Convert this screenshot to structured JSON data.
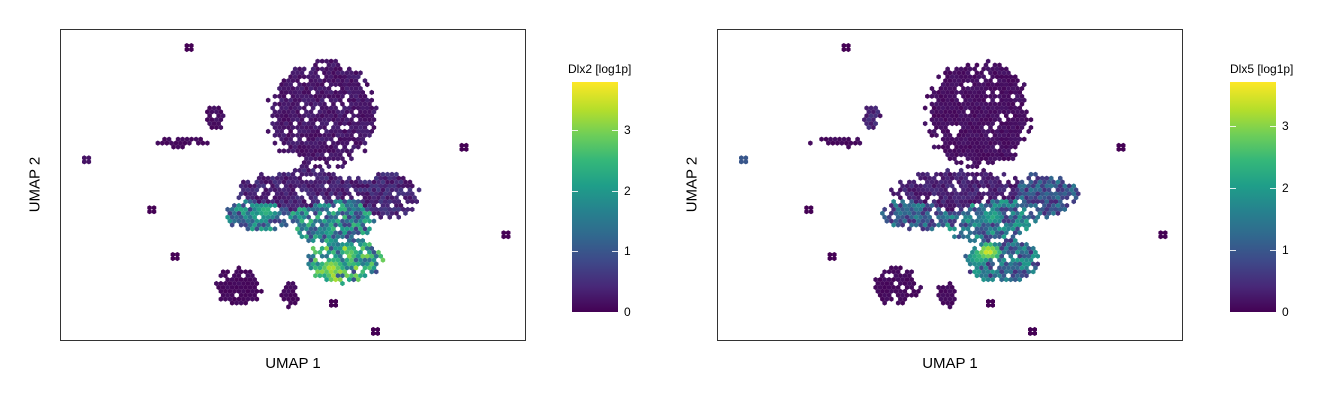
{
  "chart_data": [
    {
      "type": "scatter",
      "subtype": "hexbin-umap-expression",
      "title": "",
      "xlabel": "UMAP 1",
      "ylabel": "UMAP 2",
      "legend_title": "Dlx2 [log1p]",
      "legend_placement": "right",
      "colormap": "viridis",
      "color_range": [
        0,
        3.8
      ],
      "colorbar_ticks": [
        0,
        1,
        2,
        3
      ],
      "grid": false,
      "axis_ticks": false,
      "regions": [
        {
          "name": "top-lobe",
          "cx": 0.56,
          "cy": 0.73,
          "rx": 0.11,
          "ry": 0.17,
          "value": 0.25
        },
        {
          "name": "central-upper",
          "cx": 0.52,
          "cy": 0.48,
          "rx": 0.14,
          "ry": 0.07,
          "value": 0.4
        },
        {
          "name": "left-arm",
          "cx": 0.43,
          "cy": 0.41,
          "rx": 0.08,
          "ry": 0.05,
          "value": 1.6
        },
        {
          "name": "center-body",
          "cx": 0.58,
          "cy": 0.4,
          "rx": 0.1,
          "ry": 0.08,
          "value": 1.8
        },
        {
          "name": "right-wing",
          "cx": 0.7,
          "cy": 0.47,
          "rx": 0.07,
          "ry": 0.07,
          "value": 0.45
        },
        {
          "name": "lower-tail",
          "cx": 0.61,
          "cy": 0.26,
          "rx": 0.08,
          "ry": 0.07,
          "value": 2.3
        },
        {
          "name": "bottom-left-cluster",
          "cx": 0.38,
          "cy": 0.18,
          "rx": 0.05,
          "ry": 0.06,
          "value": 0.1
        },
        {
          "name": "bottom-mid-cluster",
          "cx": 0.49,
          "cy": 0.15,
          "rx": 0.02,
          "ry": 0.04,
          "value": 0.1
        },
        {
          "name": "mid-left-cluster",
          "cx": 0.26,
          "cy": 0.64,
          "rx": 0.06,
          "ry": 0.015,
          "value": 0.1
        },
        {
          "name": "upper-left-cluster",
          "cx": 0.33,
          "cy": 0.72,
          "rx": 0.02,
          "ry": 0.04,
          "value": 0.15
        }
      ],
      "outliers": [
        {
          "x": 0.27,
          "y": 0.95,
          "value": 0.0
        },
        {
          "x": 0.05,
          "y": 0.59,
          "value": 0.2
        },
        {
          "x": 0.19,
          "y": 0.43,
          "value": 0.0
        },
        {
          "x": 0.86,
          "y": 0.63,
          "value": 0.0
        },
        {
          "x": 0.95,
          "y": 0.35,
          "value": 0.0
        },
        {
          "x": 0.67,
          "y": 0.04,
          "value": 0.0
        },
        {
          "x": 0.24,
          "y": 0.28,
          "value": 0.0
        },
        {
          "x": 0.58,
          "y": 0.13,
          "value": 0.0
        }
      ],
      "hotspots": [
        {
          "x": 0.58,
          "y": 0.24,
          "value": 3.6
        },
        {
          "x": 0.62,
          "y": 0.29,
          "value": 3.0
        },
        {
          "x": 0.44,
          "y": 0.42,
          "value": 2.7
        }
      ]
    },
    {
      "type": "scatter",
      "subtype": "hexbin-umap-expression",
      "title": "",
      "xlabel": "UMAP 1",
      "ylabel": "UMAP 2",
      "legend_title": "Dlx5 [log1p]",
      "legend_placement": "right",
      "colormap": "viridis",
      "color_range": [
        0,
        3.7
      ],
      "colorbar_ticks": [
        0,
        1,
        2,
        3
      ],
      "grid": false,
      "axis_ticks": false,
      "regions": [
        {
          "name": "top-lobe",
          "cx": 0.56,
          "cy": 0.73,
          "rx": 0.11,
          "ry": 0.17,
          "value": 0.15
        },
        {
          "name": "central-upper",
          "cx": 0.52,
          "cy": 0.48,
          "rx": 0.14,
          "ry": 0.07,
          "value": 0.35
        },
        {
          "name": "left-arm",
          "cx": 0.43,
          "cy": 0.41,
          "rx": 0.08,
          "ry": 0.05,
          "value": 1.2
        },
        {
          "name": "center-body",
          "cx": 0.58,
          "cy": 0.4,
          "rx": 0.1,
          "ry": 0.08,
          "value": 1.5
        },
        {
          "name": "right-wing",
          "cx": 0.7,
          "cy": 0.47,
          "rx": 0.07,
          "ry": 0.07,
          "value": 1.1
        },
        {
          "name": "lower-tail",
          "cx": 0.61,
          "cy": 0.26,
          "rx": 0.08,
          "ry": 0.07,
          "value": 1.4
        },
        {
          "name": "bottom-left-cluster",
          "cx": 0.38,
          "cy": 0.18,
          "rx": 0.05,
          "ry": 0.06,
          "value": 0.1
        },
        {
          "name": "bottom-mid-cluster",
          "cx": 0.49,
          "cy": 0.15,
          "rx": 0.02,
          "ry": 0.04,
          "value": 0.1
        },
        {
          "name": "mid-left-cluster",
          "cx": 0.26,
          "cy": 0.64,
          "rx": 0.06,
          "ry": 0.015,
          "value": 0.1
        },
        {
          "name": "upper-left-cluster",
          "cx": 0.33,
          "cy": 0.72,
          "rx": 0.02,
          "ry": 0.04,
          "value": 0.4
        }
      ],
      "outliers": [
        {
          "x": 0.27,
          "y": 0.95,
          "value": 0.0
        },
        {
          "x": 0.05,
          "y": 0.59,
          "value": 1.0
        },
        {
          "x": 0.19,
          "y": 0.43,
          "value": 0.0
        },
        {
          "x": 0.86,
          "y": 0.63,
          "value": 0.0
        },
        {
          "x": 0.95,
          "y": 0.35,
          "value": 0.0
        },
        {
          "x": 0.67,
          "y": 0.04,
          "value": 0.0
        },
        {
          "x": 0.24,
          "y": 0.28,
          "value": 0.0
        },
        {
          "x": 0.58,
          "y": 0.13,
          "value": 0.0
        }
      ],
      "hotspots": [
        {
          "x": 0.58,
          "y": 0.29,
          "value": 3.7
        },
        {
          "x": 0.56,
          "y": 0.27,
          "value": 2.6
        },
        {
          "x": 0.59,
          "y": 0.4,
          "value": 2.3
        }
      ]
    }
  ]
}
